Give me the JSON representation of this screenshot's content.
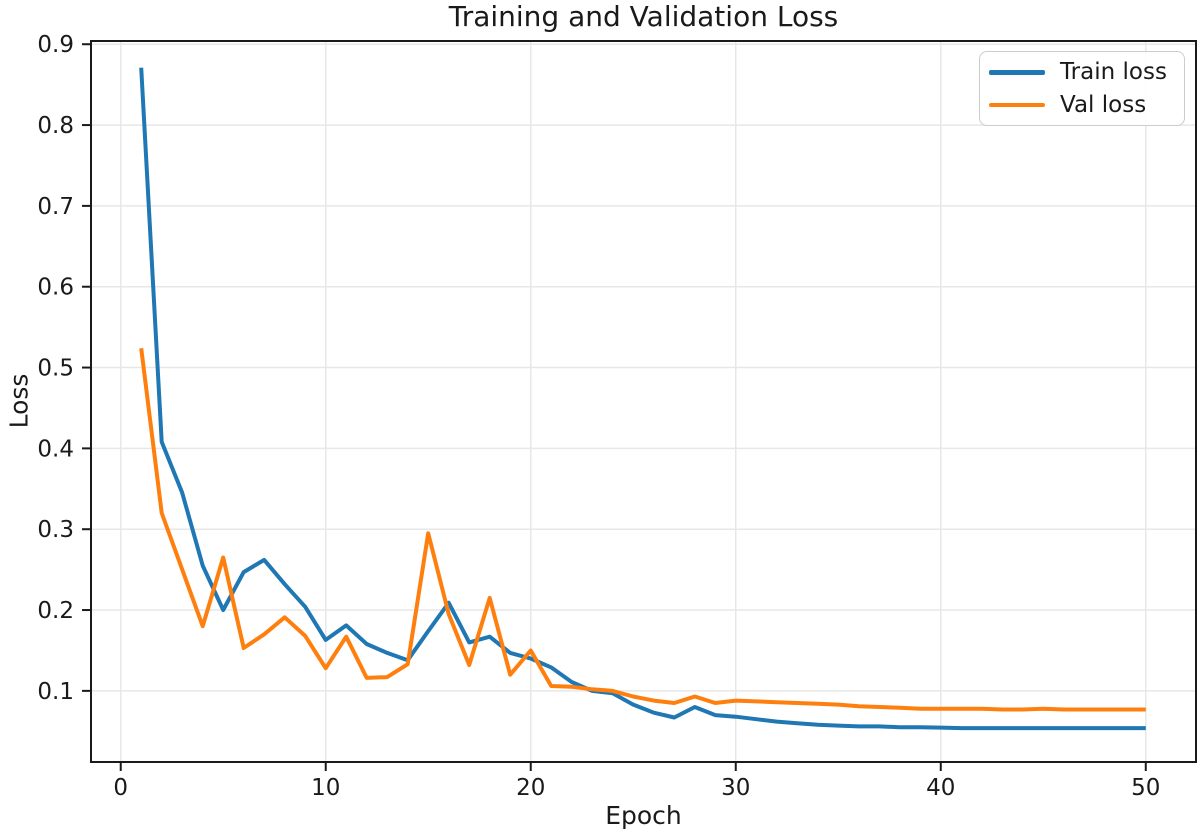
{
  "figure": {
    "title": "Training and Validation Loss",
    "xlabel": "Epoch",
    "ylabel": "Loss"
  },
  "chart_data": {
    "type": "line",
    "title": "Training and Validation Loss",
    "xlabel": "Epoch",
    "ylabel": "Loss",
    "x": [
      1,
      2,
      3,
      4,
      5,
      6,
      7,
      8,
      9,
      10,
      11,
      12,
      13,
      14,
      15,
      16,
      17,
      18,
      19,
      20,
      21,
      22,
      23,
      24,
      25,
      26,
      27,
      28,
      29,
      30,
      31,
      32,
      33,
      34,
      35,
      36,
      37,
      38,
      39,
      40,
      41,
      42,
      43,
      44,
      45,
      46,
      47,
      48,
      49,
      50
    ],
    "series": [
      {
        "name": "Train loss",
        "color": "#1f77b4",
        "values": [
          0.871,
          0.408,
          0.345,
          0.255,
          0.2,
          0.247,
          0.262,
          0.232,
          0.204,
          0.163,
          0.181,
          0.158,
          0.147,
          0.138,
          0.174,
          0.209,
          0.16,
          0.167,
          0.147,
          0.14,
          0.129,
          0.111,
          0.1,
          0.097,
          0.083,
          0.073,
          0.067,
          0.08,
          0.07,
          0.068,
          0.065,
          0.062,
          0.06,
          0.058,
          0.057,
          0.056,
          0.056,
          0.055,
          0.055,
          0.0545,
          0.054,
          0.054,
          0.054,
          0.054,
          0.054,
          0.054,
          0.054,
          0.054,
          0.054,
          0.054
        ]
      },
      {
        "name": "Val loss",
        "color": "#ff7f0e",
        "values": [
          0.524,
          0.32,
          0.25,
          0.18,
          0.265,
          0.153,
          0.17,
          0.191,
          0.168,
          0.128,
          0.167,
          0.116,
          0.117,
          0.133,
          0.295,
          0.195,
          0.132,
          0.215,
          0.12,
          0.15,
          0.106,
          0.105,
          0.102,
          0.1,
          0.093,
          0.088,
          0.085,
          0.093,
          0.085,
          0.088,
          0.087,
          0.086,
          0.085,
          0.084,
          0.083,
          0.081,
          0.08,
          0.079,
          0.078,
          0.078,
          0.078,
          0.078,
          0.077,
          0.077,
          0.078,
          0.077,
          0.077,
          0.077,
          0.077,
          0.077
        ]
      }
    ],
    "xlim": [
      -1.45,
      52.45
    ],
    "ylim": [
      0.012,
      0.904
    ],
    "xticks": [
      0,
      10,
      20,
      30,
      40,
      50
    ],
    "yticks": [
      0.1,
      0.2,
      0.3,
      0.4,
      0.5,
      0.6,
      0.7,
      0.8,
      0.9
    ],
    "grid": true,
    "legend_position": "upper right",
    "colors": {
      "background": "#ffffff",
      "text": "#1a1a1a",
      "grid": "#e7e7e7",
      "spine": "#1a1a1a",
      "legend_border": "#cccccc"
    }
  }
}
